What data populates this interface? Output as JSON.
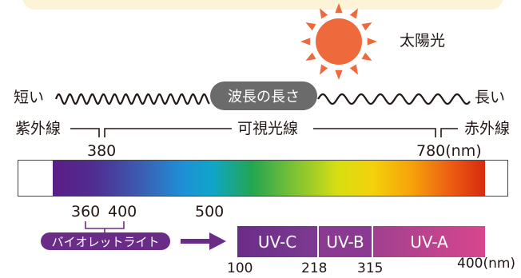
{
  "sun": {
    "label": "太陽光",
    "color": "#ee6a3d"
  },
  "wavelength_axis": {
    "short_label": "短い",
    "center_label": "波長の長さ",
    "long_label": "長い"
  },
  "bands": {
    "ultraviolet": "紫外線",
    "visible": "可視光線",
    "infrared": "赤外線"
  },
  "visible_range": {
    "start": "380",
    "end": "780",
    "unit": "(nm)"
  },
  "spectrum_ticks": {
    "a": "360",
    "b": "400",
    "c": "500"
  },
  "blacklight": {
    "label": "バイオレットライト",
    "color": "#6a2d87"
  },
  "uv_segments": [
    {
      "label": "UV-C"
    },
    {
      "label": "UV-B"
    },
    {
      "label": "UV-A"
    }
  ],
  "uv_ticks": {
    "t1": "100",
    "t2": "218",
    "t3": "315",
    "t4": "400",
    "unit": "(nm)"
  }
}
